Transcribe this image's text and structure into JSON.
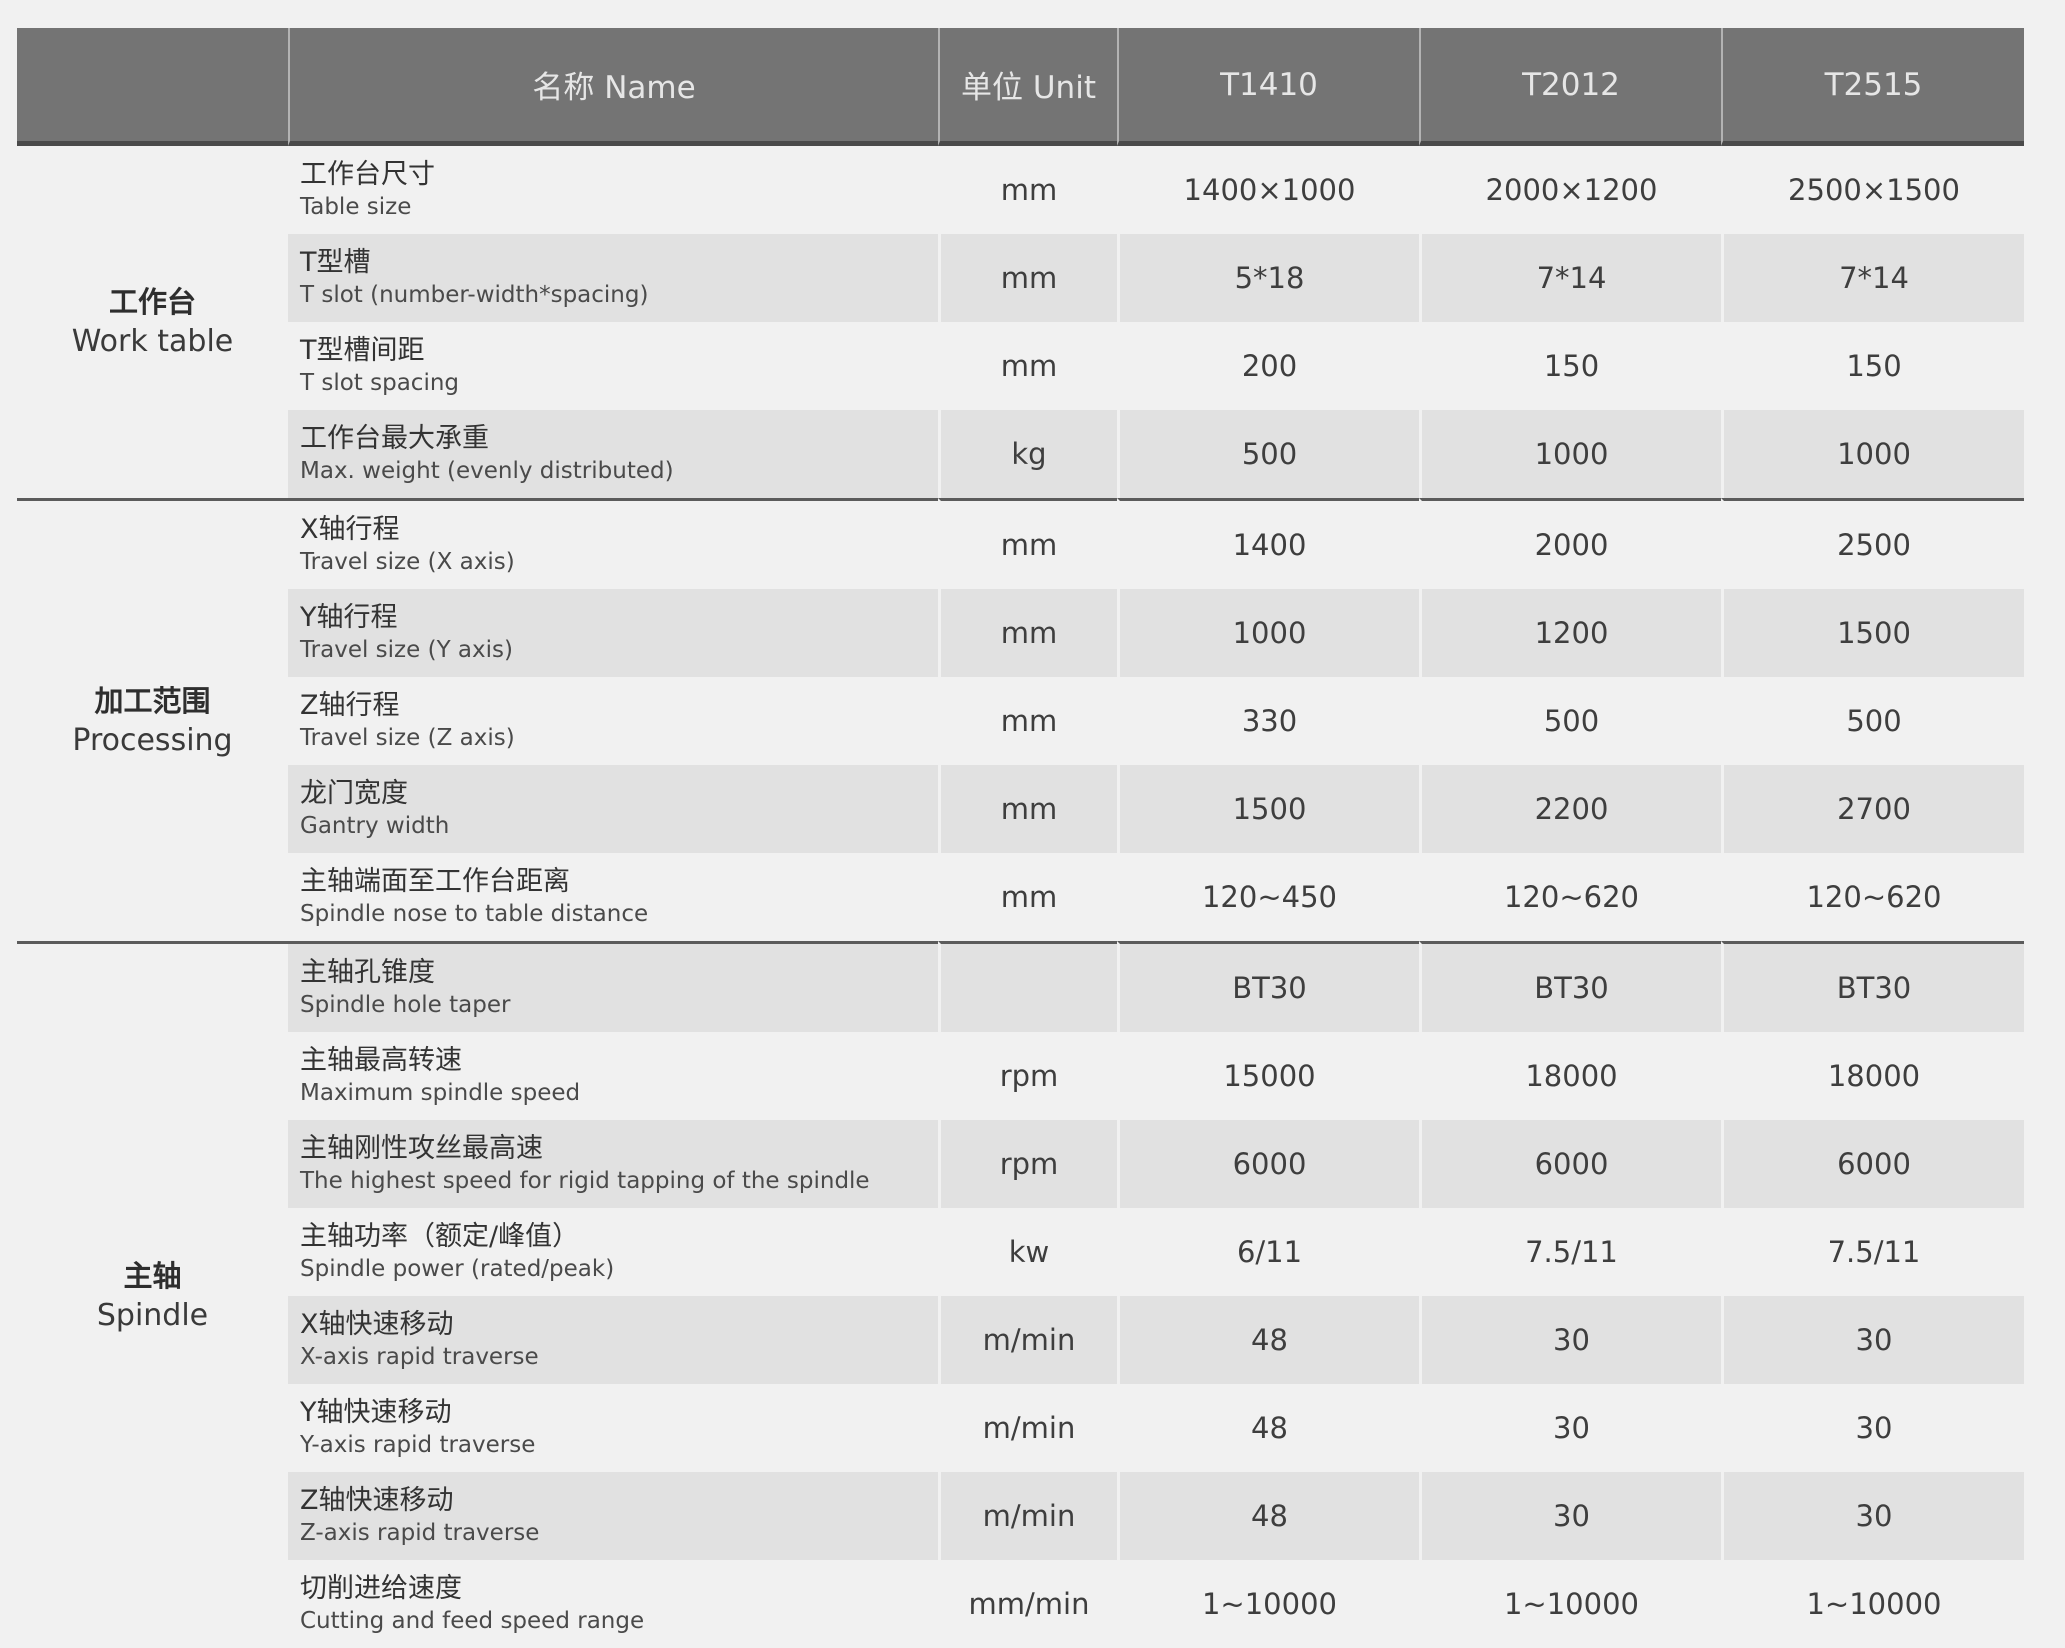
{
  "header": {
    "blank": "",
    "name": "名称 Name",
    "unit": "单位 Unit",
    "models": [
      "T1410",
      "T2012",
      "T2515"
    ]
  },
  "groups": [
    {
      "zh": "工作台",
      "en": "Work table",
      "rows": [
        {
          "zh": "工作台尺寸",
          "en": "Table size",
          "unit": "mm",
          "values": [
            "1400×1000",
            "2000×1200",
            "2500×1500"
          ]
        },
        {
          "zh": "T型槽",
          "en": "T slot (number-width*spacing)",
          "unit": "mm",
          "values": [
            "5*18",
            "7*14",
            "7*14"
          ]
        },
        {
          "zh": "T型槽间距",
          "en": "T slot spacing",
          "unit": "mm",
          "values": [
            "200",
            "150",
            "150"
          ]
        },
        {
          "zh": "工作台最大承重",
          "en": "Max. weight (evenly distributed)",
          "unit": "kg",
          "values": [
            "500",
            "1000",
            "1000"
          ]
        }
      ]
    },
    {
      "zh": "加工范围",
      "en": "Processing",
      "rows": [
        {
          "zh": "X轴行程",
          "en": "Travel size (X axis)",
          "unit": "mm",
          "values": [
            "1400",
            "2000",
            "2500"
          ]
        },
        {
          "zh": "Y轴行程",
          "en": "Travel size (Y axis)",
          "unit": "mm",
          "values": [
            "1000",
            "1200",
            "1500"
          ]
        },
        {
          "zh": "Z轴行程",
          "en": "Travel size (Z axis)",
          "unit": "mm",
          "values": [
            "330",
            "500",
            "500"
          ]
        },
        {
          "zh": "龙门宽度",
          "en": "Gantry width",
          "unit": "mm",
          "values": [
            "1500",
            "2200",
            "2700"
          ]
        },
        {
          "zh": "主轴端面至工作台距离",
          "en": "Spindle nose to table distance",
          "unit": "mm",
          "values": [
            "120~450",
            "120~620",
            "120~620"
          ]
        }
      ]
    },
    {
      "zh": "主轴",
      "en": "Spindle",
      "rows": [
        {
          "zh": "主轴孔锥度",
          "en": "Spindle hole taper",
          "unit": "",
          "values": [
            "BT30",
            "BT30",
            "BT30"
          ]
        },
        {
          "zh": "主轴最高转速",
          "en": "Maximum spindle speed",
          "unit": "rpm",
          "values": [
            "15000",
            "18000",
            "18000"
          ]
        },
        {
          "zh": "主轴刚性攻丝最高速",
          "en": "The highest speed for rigid tapping of the spindle",
          "unit": "rpm",
          "values": [
            "6000",
            "6000",
            "6000"
          ]
        },
        {
          "zh": "主轴功率（额定/峰值）",
          "en": "Spindle power (rated/peak)",
          "unit": "kw",
          "values": [
            "6/11",
            "7.5/11",
            "7.5/11"
          ]
        },
        {
          "zh": "X轴快速移动",
          "en": "X-axis rapid traverse",
          "unit": "m/min",
          "values": [
            "48",
            "30",
            "30"
          ]
        },
        {
          "zh": "Y轴快速移动",
          "en": "Y-axis rapid traverse",
          "unit": "m/min",
          "values": [
            "48",
            "30",
            "30"
          ]
        },
        {
          "zh": "Z轴快速移动",
          "en": "Z-axis rapid traverse",
          "unit": "m/min",
          "values": [
            "48",
            "30",
            "30"
          ]
        },
        {
          "zh": "切削进给速度",
          "en": "Cutting and feed speed range",
          "unit": "mm/min",
          "values": [
            "1~10000",
            "1~10000",
            "1~10000"
          ]
        }
      ]
    }
  ]
}
